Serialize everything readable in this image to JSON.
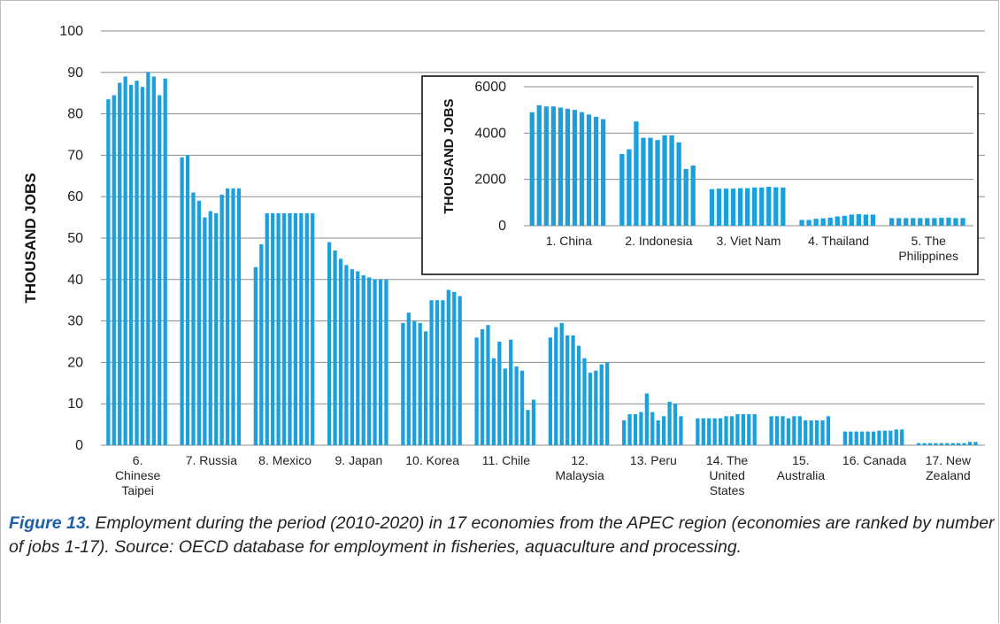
{
  "chart_data": [
    {
      "type": "bar",
      "ylabel": "THOUSAND JOBS",
      "ylim": [
        0,
        100
      ],
      "yticks": [
        0,
        10,
        20,
        30,
        40,
        50,
        60,
        70,
        80,
        90,
        100
      ],
      "grid": true,
      "color": "#1aa0dc",
      "categories": [
        "6. Chinese Taipei",
        "7. Russia",
        "8. Mexico",
        "9. Japan",
        "10. Korea",
        "11. Chile",
        "12. Malaysia",
        "13. Peru",
        "14. The United States",
        "15. Australia",
        "16. Canada",
        "17. New Zealand"
      ],
      "category_lines": [
        [
          "6.",
          "Chinese",
          "Taipei"
        ],
        [
          "7. Russia"
        ],
        [
          "8. Mexico"
        ],
        [
          "9. Japan"
        ],
        [
          "10. Korea"
        ],
        [
          "11. Chile"
        ],
        [
          "12.",
          "Malaysia"
        ],
        [
          "13. Peru"
        ],
        [
          "14. The",
          "United",
          "States"
        ],
        [
          "15.",
          "Australia"
        ],
        [
          "16. Canada"
        ],
        [
          "17. New",
          "Zealand"
        ]
      ],
      "values": [
        [
          83.5,
          84.5,
          87.5,
          89,
          87,
          88,
          86.5,
          90,
          89,
          84.5,
          88.5
        ],
        [
          69.5,
          70,
          61,
          59,
          55,
          56.5,
          56,
          60.5,
          62,
          62,
          62
        ],
        [
          43,
          48.5,
          56,
          56,
          56,
          56,
          56,
          56,
          56,
          56,
          56
        ],
        [
          49,
          47,
          45,
          43.5,
          42.5,
          42,
          41,
          40.5,
          40,
          40,
          40
        ],
        [
          29.5,
          32,
          30,
          29.5,
          27.5,
          35,
          35,
          35,
          37.5,
          37,
          36
        ],
        [
          26,
          28,
          29,
          21,
          25,
          18.5,
          25.5,
          19,
          18,
          8.5,
          11
        ],
        [
          26,
          28.5,
          29.5,
          26.5,
          26.5,
          24,
          21,
          17.5,
          18,
          19.5,
          20
        ],
        [
          6,
          7.5,
          7.5,
          8,
          12.5,
          8,
          6,
          7,
          10.5,
          10,
          7
        ],
        [
          6.5,
          6.5,
          6.5,
          6.5,
          6.5,
          7,
          7,
          7.5,
          7.5,
          7.5,
          7.5
        ],
        [
          7,
          7,
          7,
          6.5,
          7,
          7,
          6,
          6,
          6,
          6,
          7
        ],
        [
          3.3,
          3.3,
          3.3,
          3.3,
          3.3,
          3.3,
          3.5,
          3.5,
          3.5,
          3.8,
          3.8
        ],
        [
          0.5,
          0.5,
          0.5,
          0.5,
          0.5,
          0.5,
          0.5,
          0.5,
          0.5,
          0.8,
          0.8
        ]
      ]
    },
    {
      "type": "bar",
      "ylabel": "THOUSAND JOBS",
      "ylim": [
        0,
        6000
      ],
      "yticks": [
        0,
        2000,
        4000,
        6000
      ],
      "grid": true,
      "color": "#1aa0dc",
      "categories": [
        "1. China",
        "2. Indonesia",
        "3. Viet Nam",
        "4. Thailand",
        "5. The Philippines"
      ],
      "category_lines": [
        [
          "1. China"
        ],
        [
          "2. Indonesia"
        ],
        [
          "3. Viet Nam"
        ],
        [
          "4. Thailand"
        ],
        [
          "5. The",
          "Philippines"
        ]
      ],
      "values": [
        [
          4900,
          5200,
          5150,
          5150,
          5100,
          5050,
          5000,
          4900,
          4800,
          4700,
          4600
        ],
        [
          3100,
          3300,
          4500,
          3800,
          3800,
          3700,
          3900,
          3900,
          3600,
          2450,
          2600
        ],
        [
          1580,
          1600,
          1600,
          1600,
          1620,
          1620,
          1650,
          1650,
          1680,
          1660,
          1650
        ],
        [
          250,
          250,
          300,
          320,
          350,
          400,
          430,
          480,
          500,
          480,
          480
        ],
        [
          330,
          330,
          330,
          330,
          330,
          330,
          330,
          340,
          350,
          330,
          330
        ]
      ]
    }
  ],
  "caption": {
    "lead": "Figure 13.",
    "text": " Employment during the period (2010-2020) in 17 economies from the APEC region (economies are ranked by number of jobs 1-17). Source: OECD database for employment in fisheries, aquaculture and processing."
  }
}
